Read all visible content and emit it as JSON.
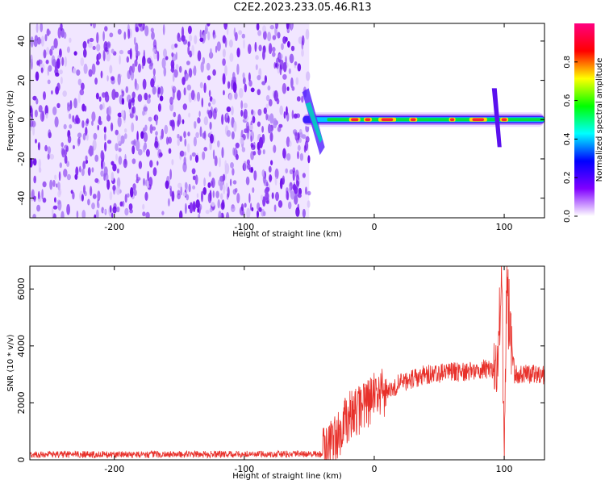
{
  "title": "C2E2.2023.233.05.46.R13",
  "chart_data": [
    {
      "type": "heatmap",
      "xlabel": "Height of straight line (km)",
      "ylabel": "Frequency (Hz)",
      "xlim": [
        -265,
        131
      ],
      "ylim": [
        -50,
        49
      ],
      "x_ticks": [
        -200,
        -100,
        0,
        100
      ],
      "y_ticks": [
        -40,
        -20,
        0,
        20,
        40
      ],
      "noise_region_x": [
        -265,
        -50
      ],
      "signal_track": {
        "frequency_hz": 0,
        "x_start": -55,
        "x_end": 131,
        "spikes_x": [
          -48,
          93
        ]
      },
      "colorbar": {
        "label": "Normalized spectral amplitude",
        "range": [
          0,
          1
        ],
        "ticks": [
          0.0,
          0.2,
          0.4,
          0.6,
          0.8
        ],
        "colors": [
          "#ffffff",
          "#8000ff",
          "#0000ff",
          "#00ffff",
          "#00ff00",
          "#ffff00",
          "#ff0000",
          "#ff0080"
        ]
      }
    },
    {
      "type": "line",
      "xlabel": "Height of straight line (km)",
      "ylabel": "SNR (10 * v/v)",
      "xlim": [
        -265,
        131
      ],
      "ylim": [
        0,
        6800
      ],
      "x_ticks": [
        -200,
        -100,
        0,
        100
      ],
      "y_ticks": [
        0,
        2000,
        4000,
        6000
      ],
      "color": "#e8302a",
      "profile": [
        {
          "x": -265,
          "y": 180
        },
        {
          "x": -40,
          "y": 200
        },
        {
          "x": -30,
          "y": 700
        },
        {
          "x": -20,
          "y": 1500
        },
        {
          "x": -10,
          "y": 1800
        },
        {
          "x": 0,
          "y": 2200
        },
        {
          "x": 10,
          "y": 2400
        },
        {
          "x": 20,
          "y": 2700
        },
        {
          "x": 40,
          "y": 3000
        },
        {
          "x": 70,
          "y": 3100
        },
        {
          "x": 88,
          "y": 3200
        },
        {
          "x": 95,
          "y": 3000
        },
        {
          "x": 98,
          "y": 6500
        },
        {
          "x": 100,
          "y": 300
        },
        {
          "x": 102,
          "y": 5800
        },
        {
          "x": 108,
          "y": 3000
        },
        {
          "x": 131,
          "y": 3000
        }
      ]
    }
  ]
}
